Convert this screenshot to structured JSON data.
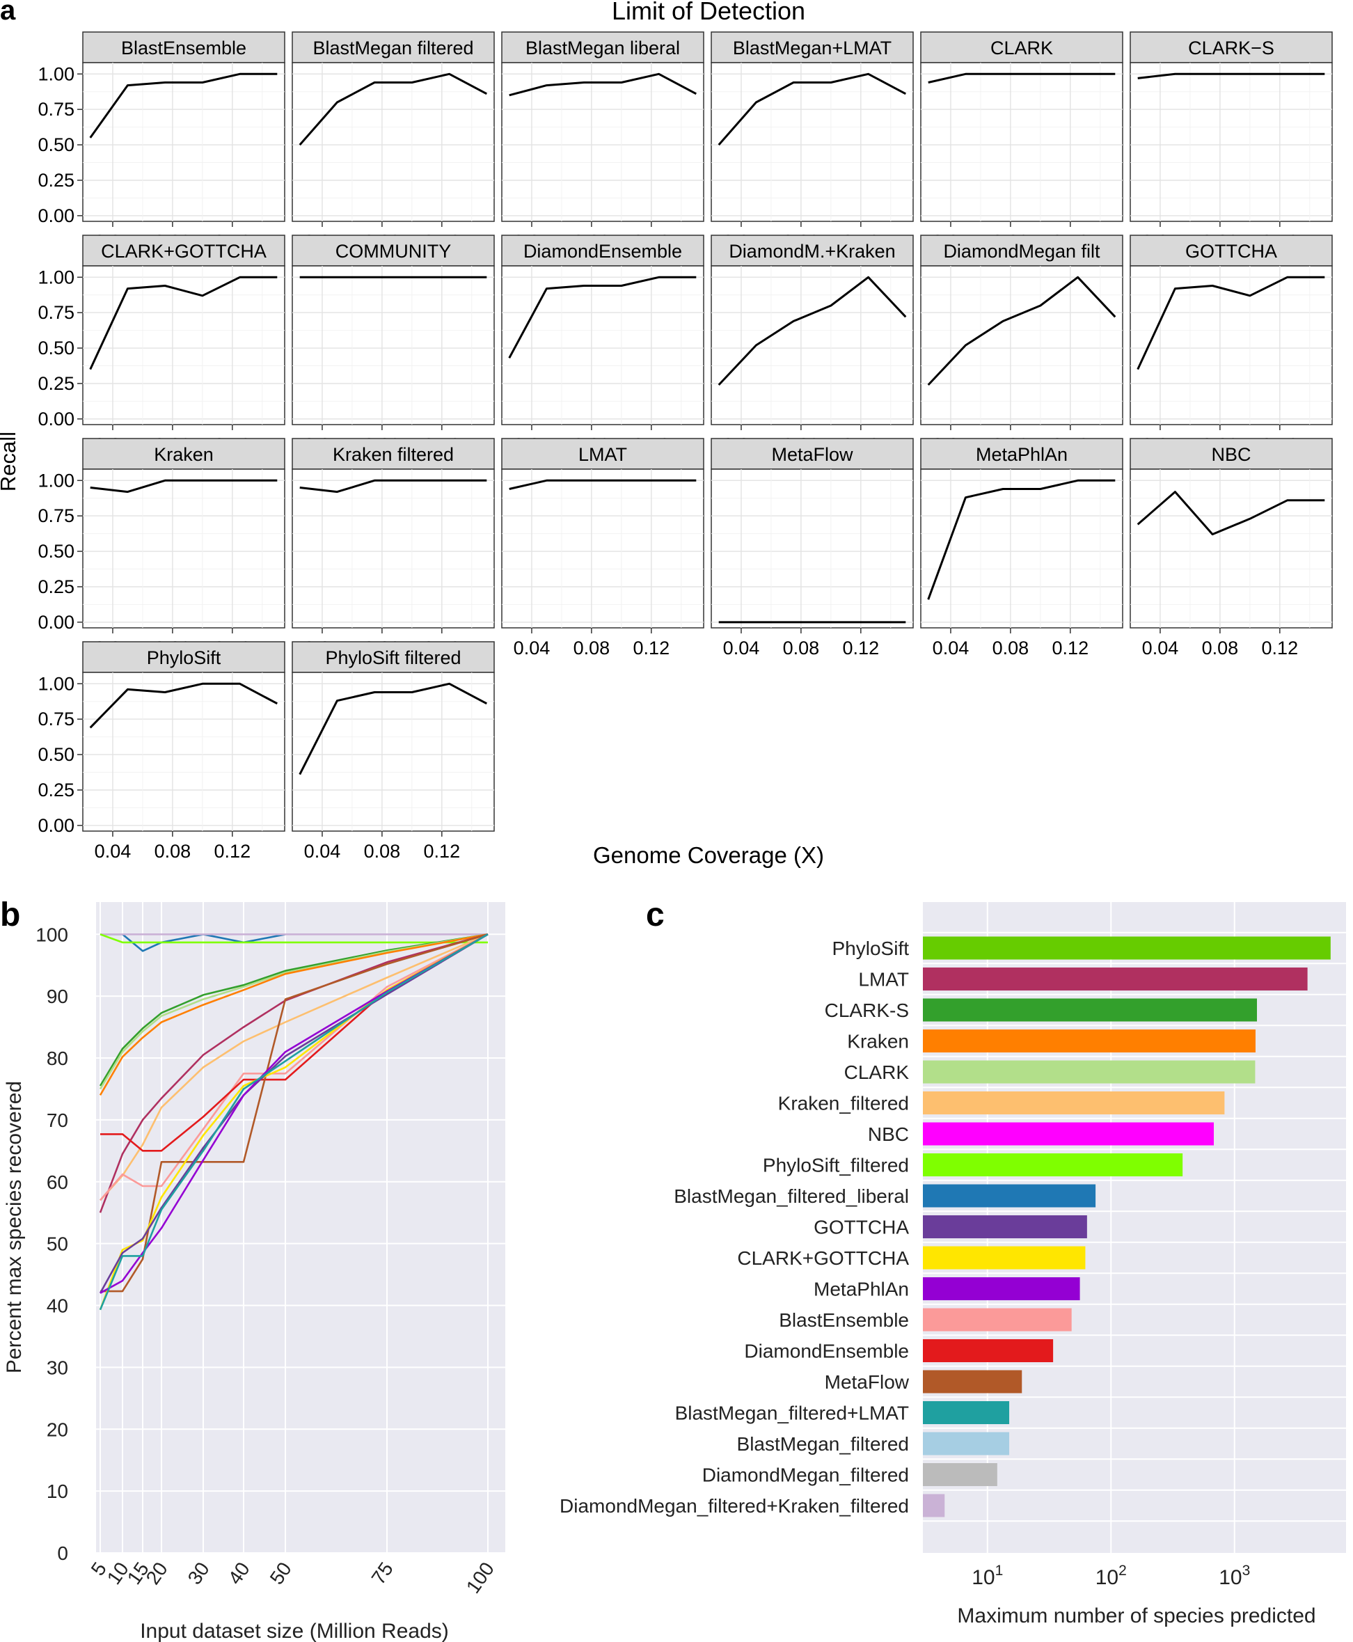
{
  "chart_data": [
    {
      "type": "line",
      "panel_label": "a",
      "title": "Limit of Detection",
      "xlabel": "Genome Coverage (X)",
      "ylabel": "Recall",
      "x_ticks": [
        "0.04",
        "0.08",
        "0.12"
      ],
      "y_ticks": [
        "0.00",
        "0.25",
        "0.50",
        "0.75",
        "1.00"
      ],
      "xlim": [
        0.02,
        0.155
      ],
      "ylim": [
        -0.04,
        1.08
      ],
      "x": [
        0.025,
        0.05,
        0.075,
        0.1,
        0.125,
        0.15
      ],
      "facets": [
        {
          "name": "BlastEnsemble",
          "values": [
            0.55,
            0.92,
            0.94,
            0.94,
            1.0,
            1.0
          ]
        },
        {
          "name": "BlastMegan filtered",
          "values": [
            0.5,
            0.8,
            0.94,
            0.94,
            1.0,
            0.86
          ]
        },
        {
          "name": "BlastMegan liberal",
          "values": [
            0.85,
            0.92,
            0.94,
            0.94,
            1.0,
            0.86
          ]
        },
        {
          "name": "BlastMegan+LMAT",
          "values": [
            0.5,
            0.8,
            0.94,
            0.94,
            1.0,
            0.86
          ]
        },
        {
          "name": "CLARK",
          "values": [
            0.94,
            1.0,
            1.0,
            1.0,
            1.0,
            1.0
          ]
        },
        {
          "name": "CLARK−S",
          "values": [
            0.97,
            1.0,
            1.0,
            1.0,
            1.0,
            1.0
          ]
        },
        {
          "name": "CLARK+GOTTCHA",
          "values": [
            0.35,
            0.92,
            0.94,
            0.87,
            1.0,
            1.0
          ]
        },
        {
          "name": "COMMUNITY",
          "values": [
            1.0,
            1.0,
            1.0,
            1.0,
            1.0,
            1.0
          ]
        },
        {
          "name": "DiamondEnsemble",
          "values": [
            0.43,
            0.92,
            0.94,
            0.94,
            1.0,
            1.0
          ]
        },
        {
          "name": "DiamondM.+Kraken",
          "values": [
            0.24,
            0.52,
            0.69,
            0.8,
            1.0,
            0.72
          ]
        },
        {
          "name": "DiamondMegan filt",
          "values": [
            0.24,
            0.52,
            0.69,
            0.8,
            1.0,
            0.72
          ]
        },
        {
          "name": "GOTTCHA",
          "values": [
            0.35,
            0.92,
            0.94,
            0.87,
            1.0,
            1.0
          ]
        },
        {
          "name": "Kraken",
          "values": [
            0.95,
            0.92,
            1.0,
            1.0,
            1.0,
            1.0
          ]
        },
        {
          "name": "Kraken filtered",
          "values": [
            0.95,
            0.92,
            1.0,
            1.0,
            1.0,
            1.0
          ]
        },
        {
          "name": "LMAT",
          "values": [
            0.94,
            1.0,
            1.0,
            1.0,
            1.0,
            1.0
          ]
        },
        {
          "name": "MetaFlow",
          "values": [
            0.0,
            0.0,
            0.0,
            0.0,
            0.0,
            0.0
          ]
        },
        {
          "name": "MetaPhlAn",
          "values": [
            0.16,
            0.88,
            0.94,
            0.94,
            1.0,
            1.0
          ]
        },
        {
          "name": "NBC",
          "values": [
            0.69,
            0.92,
            0.62,
            0.73,
            0.86,
            0.86
          ]
        },
        {
          "name": "PhyloSift",
          "values": [
            0.69,
            0.96,
            0.94,
            1.0,
            1.0,
            0.86
          ]
        },
        {
          "name": "PhyloSift filtered",
          "values": [
            0.36,
            0.88,
            0.94,
            0.94,
            1.0,
            0.86
          ]
        }
      ]
    },
    {
      "type": "line",
      "panel_label": "b",
      "xlabel": "Input dataset size (Million Reads)",
      "ylabel": "Percent max species recovered",
      "x": [
        5,
        10,
        15,
        20,
        30,
        40,
        50,
        75,
        100
      ],
      "x_ticks": [
        "5",
        "10",
        "15",
        "20",
        "30",
        "40",
        "50",
        "75",
        "100"
      ],
      "y_ticks": [
        "0",
        "10",
        "20",
        "30",
        "40",
        "50",
        "60",
        "70",
        "80",
        "90",
        "100"
      ],
      "ylim": [
        0,
        105
      ],
      "series": [
        {
          "name": "BlastMegan_filtered_liberal",
          "color": "#1f78b4",
          "values": [
            100,
            100,
            97.3,
            98.7,
            100,
            98.7,
            100,
            null,
            null
          ]
        },
        {
          "name": "DiamondMegan_filtered+Kraken_filtered",
          "color": "#cab2d6",
          "values": [
            100,
            100,
            100,
            100,
            100,
            100,
            100,
            100,
            100
          ]
        },
        {
          "name": "PhyloSift_filtered",
          "color": "#7fff00",
          "values": [
            100,
            98.7,
            98.7,
            98.7,
            98.7,
            98.7,
            98.7,
            98.7,
            98.7
          ]
        },
        {
          "name": "CLARK-S",
          "color": "#33a02c",
          "values": [
            75.5,
            81.5,
            84.8,
            87.3,
            90.2,
            91.8,
            94.1,
            97.4,
            100
          ]
        },
        {
          "name": "CLARK",
          "color": "#b2df8a",
          "values": [
            75,
            81,
            84.3,
            86.8,
            89.5,
            91.5,
            93.8,
            97.2,
            100
          ]
        },
        {
          "name": "Kraken",
          "color": "#ff7f00",
          "values": [
            74,
            80.2,
            83.3,
            85.8,
            88.6,
            91,
            93.6,
            97,
            100
          ]
        },
        {
          "name": "LMAT",
          "color": "#b03060",
          "values": [
            55,
            64.5,
            70,
            73.5,
            80.5,
            85,
            89.3,
            95.5,
            100
          ]
        },
        {
          "name": "Kraken_filtered",
          "color": "#fdbf6f",
          "values": [
            57,
            61,
            66,
            72,
            78.5,
            82.7,
            85.8,
            93,
            100
          ]
        },
        {
          "name": "BlastEnsemble",
          "color": "#fb9a99",
          "values": [
            57,
            61.2,
            59.3,
            59.3,
            68.5,
            77.5,
            77.5,
            91.5,
            100
          ]
        },
        {
          "name": "DiamondEnsemble",
          "color": "#e31a1c",
          "values": [
            67.7,
            67.7,
            65,
            65,
            70.5,
            76.5,
            76.5,
            91,
            100
          ]
        },
        {
          "name": "MetaFlow",
          "color": "#b15928",
          "values": [
            42.3,
            42.3,
            47.5,
            63.2,
            63.2,
            63.2,
            89.5,
            95.2,
            100
          ]
        },
        {
          "name": "CLARK+GOTTCHA",
          "color": "#ffe600",
          "values": [
            39.3,
            49,
            50.5,
            57.5,
            67.5,
            75.5,
            78.5,
            91,
            100
          ]
        },
        {
          "name": "GOTTCHA",
          "color": "#6a3d9a",
          "values": [
            42,
            48.5,
            50.8,
            55.8,
            65.5,
            74,
            80.3,
            90.3,
            100
          ]
        },
        {
          "name": "MetaPhlAn",
          "color": "#9400d3",
          "values": [
            42,
            44,
            48.5,
            52.5,
            63.5,
            74,
            81,
            90.8,
            100
          ]
        },
        {
          "name": "BlastMegan_filtered+LMAT",
          "color": "#1fa0a0",
          "values": [
            39.3,
            48,
            48,
            55.5,
            65,
            75,
            79.5,
            90.6,
            100
          ]
        }
      ]
    },
    {
      "type": "bar",
      "orientation": "horizontal",
      "panel_label": "c",
      "xlabel": "Maximum number of species predicted",
      "xscale": "log",
      "xlim": [
        3,
        8000
      ],
      "x_ticks": [
        "10",
        "10",
        "10"
      ],
      "x_tick_exponents": [
        "1",
        "2",
        "3"
      ],
      "categories": [
        "PhyloSift",
        "LMAT",
        "CLARK-S",
        "Kraken",
        "CLARK",
        "Kraken_filtered",
        "NBC",
        "PhyloSift_filtered",
        "BlastMegan_filtered_liberal",
        "GOTTCHA",
        "CLARK+GOTTCHA",
        "MetaPhlAn",
        "BlastEnsemble",
        "DiamondEnsemble",
        "MetaFlow",
        "BlastMegan_filtered+LMAT",
        "BlastMegan_filtered",
        "DiamondMegan_filtered",
        "DiamondMegan_filtered+Kraken_filtered"
      ],
      "values": [
        6000,
        3900,
        1520,
        1480,
        1470,
        830,
        680,
        380,
        75,
        64,
        62,
        56,
        48,
        34,
        19,
        15,
        15,
        12,
        4.5
      ],
      "colors": [
        "#66cc00",
        "#b03060",
        "#33a02c",
        "#ff7f00",
        "#b2df8a",
        "#fdbf6f",
        "#ff00ff",
        "#7fff00",
        "#1f78b4",
        "#6a3d9a",
        "#ffe600",
        "#9400d3",
        "#fb9a99",
        "#e31a1c",
        "#b15928",
        "#1fa0a0",
        "#a6cee3",
        "#bbbbbb",
        "#cab2d6"
      ]
    }
  ]
}
